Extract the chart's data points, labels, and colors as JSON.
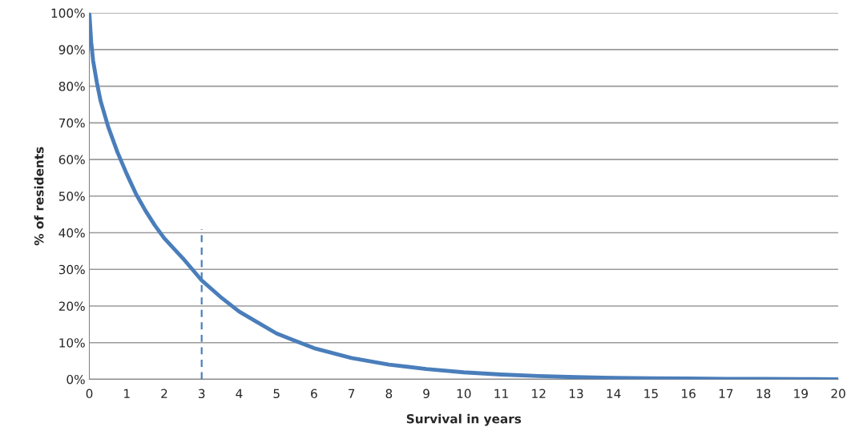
{
  "chart_data": {
    "type": "line",
    "xlabel": "Survival in years",
    "ylabel": "% of residents",
    "xlim": [
      0,
      20
    ],
    "xticks": [
      0,
      1,
      2,
      3,
      4,
      5,
      6,
      7,
      8,
      9,
      10,
      11,
      12,
      13,
      14,
      15,
      16,
      17,
      18,
      19,
      20
    ],
    "ylim": [
      0,
      100
    ],
    "yticks": [
      {
        "value": 0,
        "label": "0%"
      },
      {
        "value": 10,
        "label": "10%"
      },
      {
        "value": 20,
        "label": "20%"
      },
      {
        "value": 30,
        "label": "30%"
      },
      {
        "value": 40,
        "label": "40%"
      },
      {
        "value": 50,
        "label": "50%"
      },
      {
        "value": 60,
        "label": "60%"
      },
      {
        "value": 70,
        "label": "70%"
      },
      {
        "value": 80,
        "label": "80%"
      },
      {
        "value": 90,
        "label": "90%"
      },
      {
        "value": 100,
        "label": "100%"
      }
    ],
    "grid": "y",
    "legend": false,
    "marker": "none",
    "series": [
      {
        "color": "#4a7ebb",
        "line_style": "solid",
        "x": [
          0,
          0.05,
          0.1,
          0.2,
          0.3,
          0.5,
          0.75,
          1,
          1.25,
          1.5,
          1.75,
          2,
          2.5,
          3,
          3.5,
          4,
          4.5,
          5,
          5.5,
          6,
          7,
          8,
          9,
          10,
          11,
          12,
          13,
          14,
          15,
          16,
          17,
          18,
          19,
          20
        ],
        "values": [
          100,
          92,
          87,
          81,
          76,
          69,
          62,
          56,
          50.5,
          46,
          42,
          38.5,
          33,
          27,
          22.5,
          18.5,
          15.5,
          12.5,
          10.5,
          8.5,
          5.8,
          4,
          2.8,
          1.9,
          1.3,
          0.9,
          0.6,
          0.4,
          0.3,
          0.2,
          0.1,
          0.1,
          0.05,
          0
        ]
      },
      {
        "color": "#4a7ebb",
        "line_style": "dashed",
        "x": [
          3,
          3
        ],
        "values": [
          0,
          41
        ]
      }
    ]
  }
}
